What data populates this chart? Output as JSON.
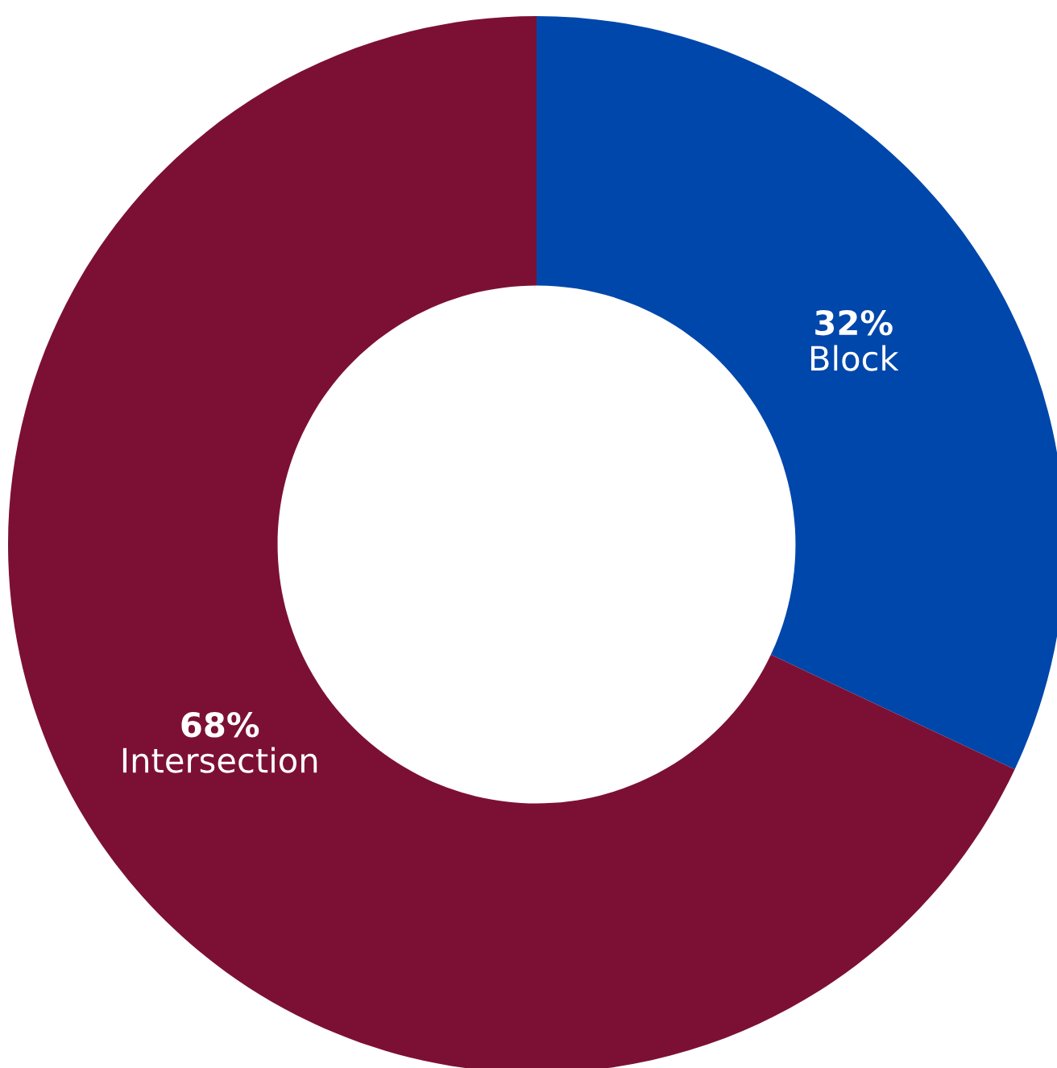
{
  "chart_data": {
    "type": "donut",
    "categories": [
      "Block",
      "Intersection"
    ],
    "values": [
      32,
      68
    ],
    "colors": [
      "#0047ab",
      "#7c1034"
    ],
    "value_labels": [
      "32%",
      "68%"
    ]
  }
}
